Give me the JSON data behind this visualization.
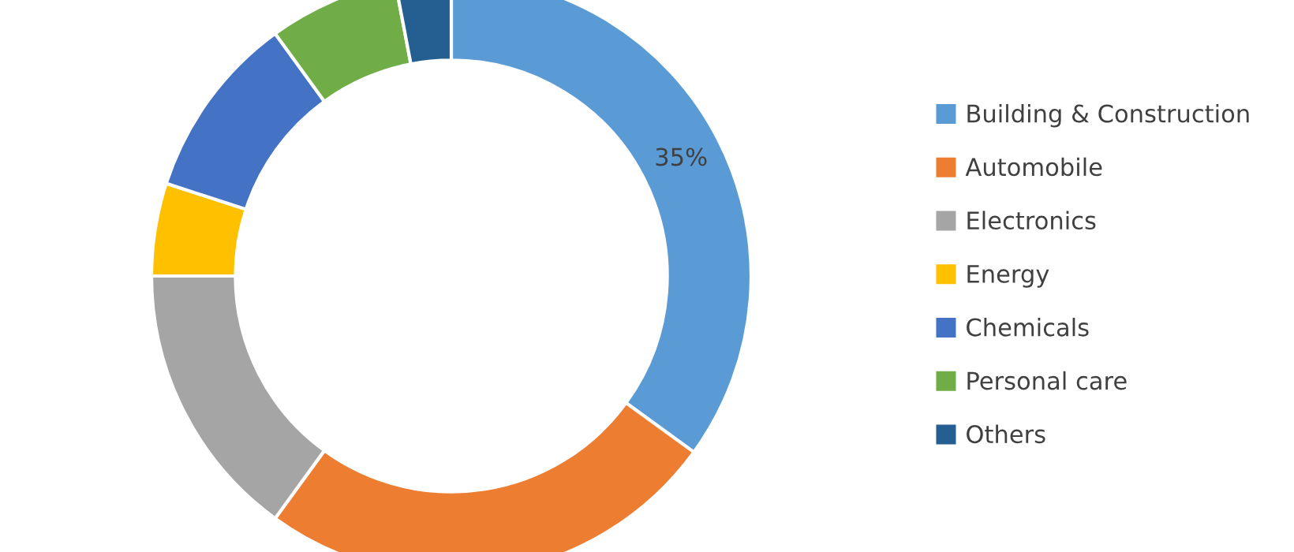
{
  "chart_data": {
    "type": "donut",
    "categories": [
      "Building & Construction",
      "Automobile",
      "Electronics",
      "Energy",
      "Chemicals",
      "Personal care",
      "Others"
    ],
    "values": [
      35,
      25,
      15,
      5,
      10,
      7,
      3
    ],
    "colors": [
      "#5b9bd5",
      "#ed7d31",
      "#a5a5a5",
      "#ffc000",
      "#4472c4",
      "#70ad47",
      "#255e91"
    ],
    "value_labels": [
      "35%",
      null,
      null,
      null,
      null,
      null,
      null
    ],
    "legend": "right"
  }
}
